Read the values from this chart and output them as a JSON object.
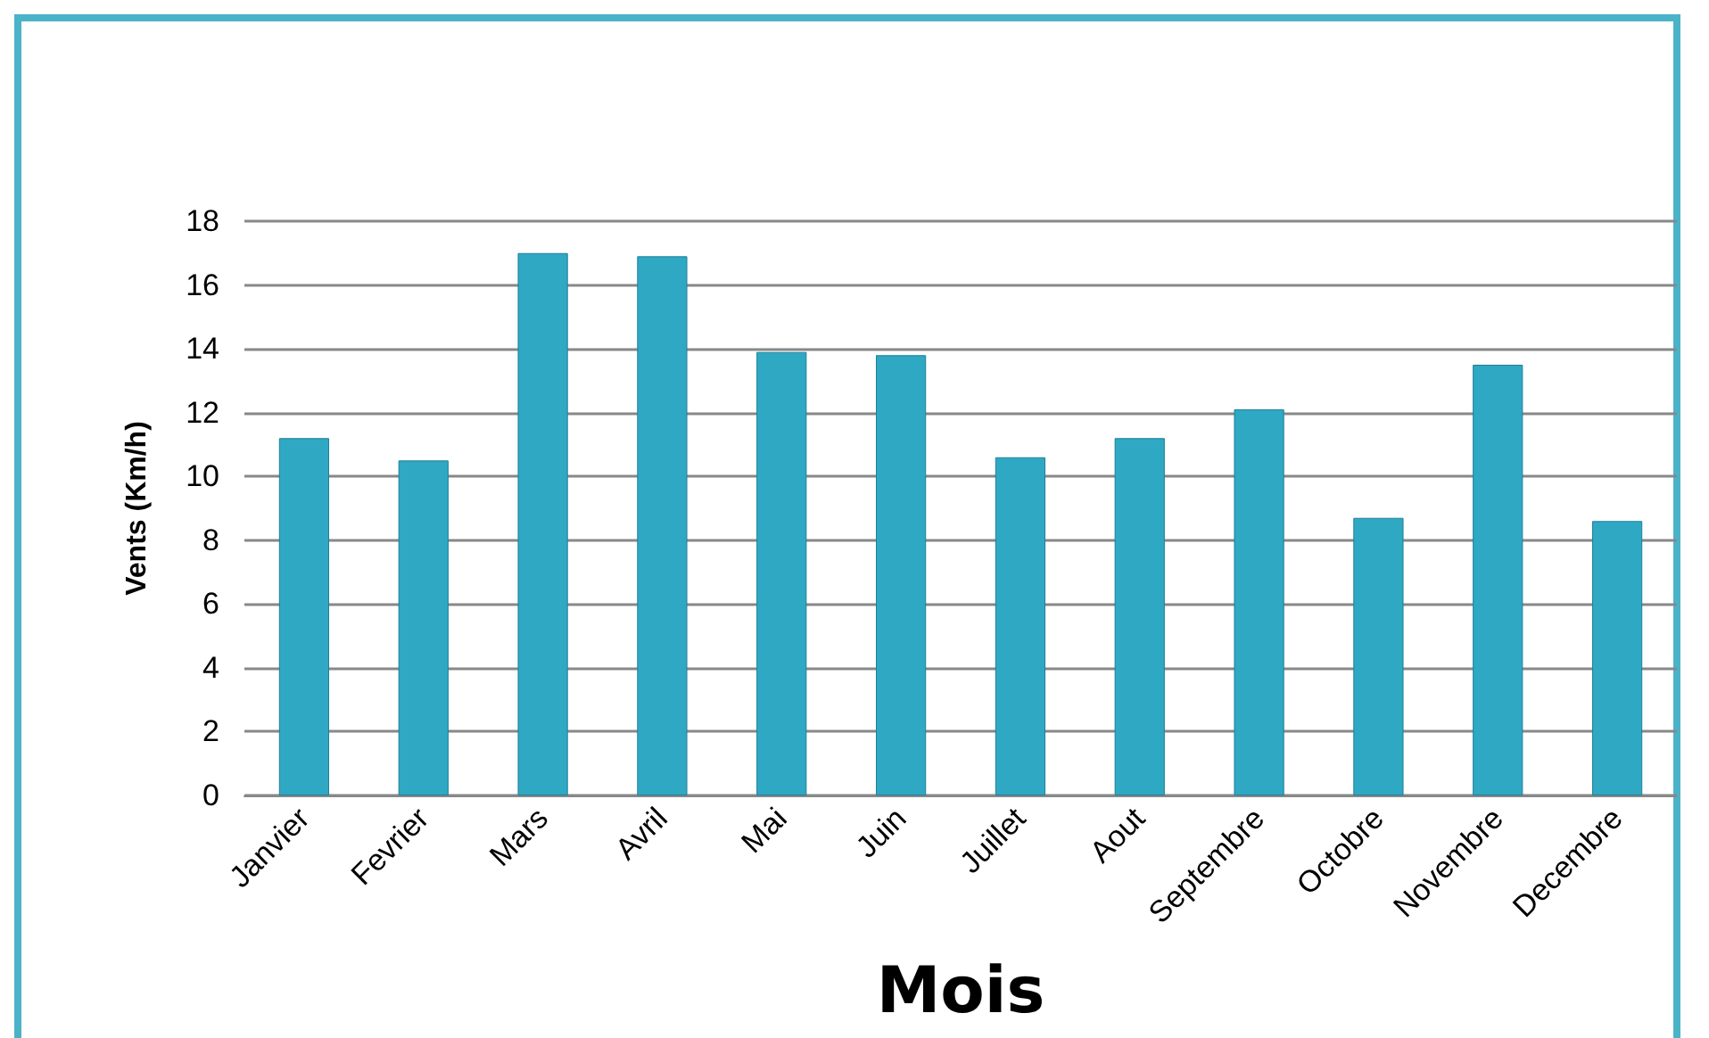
{
  "chart_data": {
    "type": "bar",
    "xlabel": "Mois",
    "ylabel": "Vents (Km/h)",
    "categories": [
      "Janvier",
      "Fevrier",
      "Mars",
      "Avril",
      "Mai",
      "Juin",
      "Juillet",
      "Aout",
      "Septembre",
      "Octobre",
      "Novembre",
      "Decembre"
    ],
    "values": [
      11.2,
      10.5,
      17.0,
      16.9,
      13.9,
      13.8,
      10.6,
      11.2,
      12.1,
      8.7,
      13.5,
      8.6
    ],
    "color": "#2fa8c4",
    "ylim": [
      0,
      18
    ],
    "yticks": [
      0,
      2,
      4,
      6,
      8,
      10,
      12,
      14,
      16,
      18
    ],
    "grid": "y"
  }
}
